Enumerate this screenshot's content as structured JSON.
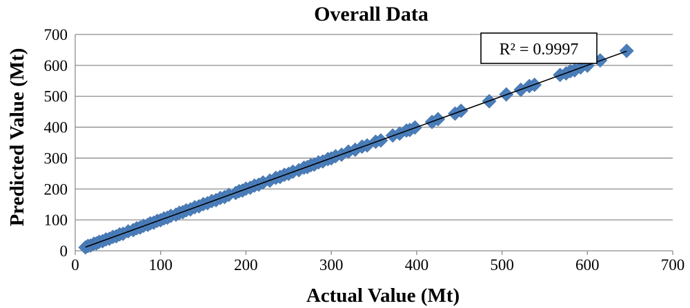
{
  "chart_data": {
    "type": "scatter",
    "title": "Overall Data",
    "xlabel": "Actual Value (Mt)",
    "ylabel": "Predicted Value (Mt)",
    "xlim": [
      0,
      700
    ],
    "ylim": [
      0,
      700
    ],
    "xticks": [
      "0",
      "100",
      "200",
      "300",
      "400",
      "500",
      "600",
      "700"
    ],
    "yticks": [
      "0",
      "100",
      "200",
      "300",
      "400",
      "500",
      "600",
      "700"
    ],
    "grid": "horizontal",
    "annotation": "R² = 0.9997",
    "marker_color": "#4a7ebb",
    "trendline": {
      "x": [
        12,
        646
      ],
      "y": [
        12,
        646
      ]
    },
    "series": [
      {
        "x": [
          12,
          15,
          18,
          22,
          25,
          28,
          32,
          36,
          40,
          44,
          48,
          52,
          56,
          62,
          68,
          72,
          76,
          80,
          85,
          88,
          92,
          96,
          100,
          104,
          108,
          112,
          118,
          122,
          126,
          130,
          135,
          140,
          145,
          150,
          155,
          160,
          165,
          170,
          175,
          180,
          188,
          192,
          196,
          200,
          205,
          210,
          215,
          220,
          228,
          235,
          240,
          245,
          250,
          255,
          262,
          268,
          272,
          276,
          280,
          285,
          290,
          296,
          300,
          305,
          312,
          320,
          328,
          336,
          342,
          352,
          358,
          372,
          380,
          388,
          392,
          398,
          418,
          425,
          445,
          452,
          485,
          505,
          522,
          532,
          538,
          568,
          575,
          580,
          585,
          592,
          600,
          615,
          646
        ],
        "y": [
          11,
          16,
          17,
          23,
          24,
          29,
          31,
          37,
          39,
          45,
          47,
          53,
          55,
          63,
          67,
          73,
          75,
          81,
          84,
          89,
          91,
          97,
          99,
          105,
          107,
          113,
          117,
          123,
          125,
          131,
          134,
          141,
          144,
          151,
          154,
          161,
          164,
          171,
          174,
          181,
          187,
          193,
          195,
          201,
          204,
          211,
          214,
          221,
          227,
          236,
          239,
          246,
          249,
          256,
          261,
          269,
          271,
          277,
          279,
          286,
          289,
          297,
          299,
          306,
          311,
          321,
          327,
          337,
          341,
          353,
          357,
          373,
          379,
          389,
          391,
          399,
          417,
          426,
          444,
          453,
          484,
          506,
          521,
          533,
          537,
          569,
          574,
          581,
          584,
          593,
          599,
          616,
          647
        ]
      }
    ]
  }
}
